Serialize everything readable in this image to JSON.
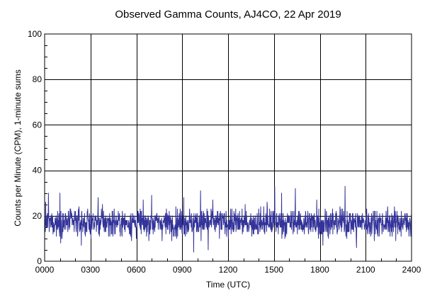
{
  "chart_data": {
    "type": "line",
    "title": "Observed Gamma Counts, AJ4CO, 22 Apr 2019",
    "xlabel": "Time (UTC)",
    "ylabel": "Counts per Minute (CPM), 1-minute sums",
    "xlim": [
      0,
      24
    ],
    "ylim": [
      0,
      100
    ],
    "x_ticks": [
      {
        "value": 0,
        "label": "0000"
      },
      {
        "value": 3,
        "label": "0300"
      },
      {
        "value": 6,
        "label": "0600"
      },
      {
        "value": 9,
        "label": "0900"
      },
      {
        "value": 12,
        "label": "1200"
      },
      {
        "value": 15,
        "label": "1500"
      },
      {
        "value": 18,
        "label": "1800"
      },
      {
        "value": 21,
        "label": "2100"
      },
      {
        "value": 24,
        "label": "2400"
      }
    ],
    "y_ticks": [
      {
        "value": 0,
        "label": "0"
      },
      {
        "value": 20,
        "label": "20"
      },
      {
        "value": 40,
        "label": "40"
      },
      {
        "value": 60,
        "label": "60"
      },
      {
        "value": 80,
        "label": "80"
      },
      {
        "value": 100,
        "label": "100"
      }
    ],
    "grid": true,
    "line_color": "#33339a",
    "series": [
      {
        "resolution_minutes": 1,
        "x_start": 0,
        "x_end": 24,
        "mean": 17,
        "min_observed": 4,
        "max_observed": 33,
        "spikes": [
          {
            "x": 0.25,
            "y": 30
          },
          {
            "x": 1.0,
            "y": 30
          },
          {
            "x": 3.5,
            "y": 28
          },
          {
            "x": 7.0,
            "y": 29
          },
          {
            "x": 9.1,
            "y": 28
          },
          {
            "x": 10.2,
            "y": 31
          },
          {
            "x": 11.0,
            "y": 27
          },
          {
            "x": 14.55,
            "y": 26
          },
          {
            "x": 15.05,
            "y": 33
          },
          {
            "x": 15.5,
            "y": 30
          },
          {
            "x": 16.4,
            "y": 32
          },
          {
            "x": 17.8,
            "y": 27
          },
          {
            "x": 19.65,
            "y": 33
          },
          {
            "x": 9.75,
            "y": 4
          },
          {
            "x": 10.7,
            "y": 5
          },
          {
            "x": 2.4,
            "y": 7
          },
          {
            "x": 18.2,
            "y": 7
          },
          {
            "x": 20.4,
            "y": 6
          }
        ]
      }
    ]
  }
}
